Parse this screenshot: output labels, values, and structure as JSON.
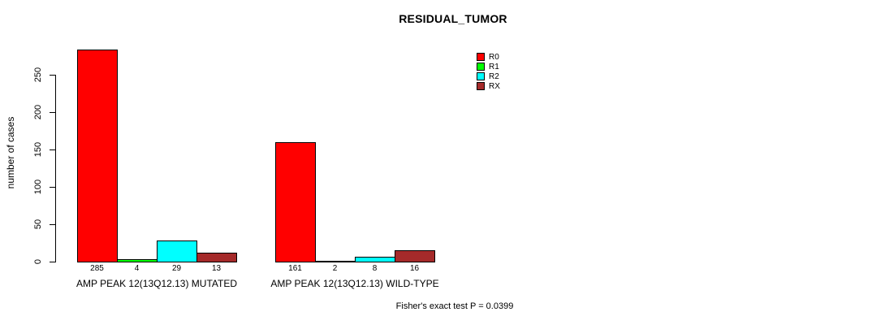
{
  "title": "RESIDUAL_TUMOR",
  "background_color": "#FFFFFF",
  "axis_color": "#000000",
  "chart_data": {
    "type": "bar",
    "title": "RESIDUAL_TUMOR",
    "xlabel": "",
    "ylabel": "number of cases",
    "ylim": [
      0,
      250
    ],
    "yticks": [
      0,
      50,
      100,
      150,
      200,
      250
    ],
    "grid": false,
    "legend_position": "top-right",
    "categories": [
      "AMP PEAK 12(13Q12.13) MUTATED",
      "AMP PEAK 12(13Q12.13) WILD-TYPE"
    ],
    "series": [
      {
        "name": "R0",
        "color": "#FF0000",
        "values": [
          285,
          161
        ]
      },
      {
        "name": "R1",
        "color": "#00FF00",
        "values": [
          4,
          2
        ]
      },
      {
        "name": "R2",
        "color": "#00FFFF",
        "values": [
          29,
          8
        ]
      },
      {
        "name": "RX",
        "color": "#A52A2A",
        "values": [
          13,
          16
        ]
      }
    ],
    "bar_value_labels": [
      [
        285,
        4,
        29,
        13
      ],
      [
        161,
        2,
        8,
        16
      ]
    ],
    "annotation": "Fisher's exact test P = 0.0399"
  }
}
